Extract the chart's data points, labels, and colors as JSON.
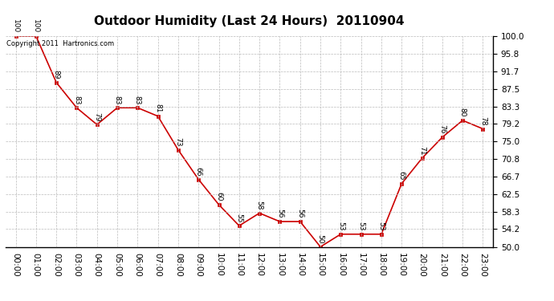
{
  "title": "Outdoor Humidity (Last 24 Hours)  20110904",
  "copyright_text": "Copyright 2011  Hartronics.com",
  "x_labels": [
    "00:00",
    "01:00",
    "02:00",
    "03:00",
    "04:00",
    "05:00",
    "06:00",
    "07:00",
    "08:00",
    "09:00",
    "10:00",
    "11:00",
    "12:00",
    "13:00",
    "14:00",
    "15:00",
    "16:00",
    "17:00",
    "18:00",
    "19:00",
    "20:00",
    "21:00",
    "22:00",
    "23:00"
  ],
  "hours": [
    0,
    1,
    2,
    3,
    4,
    5,
    6,
    7,
    8,
    9,
    10,
    11,
    12,
    13,
    14,
    15,
    16,
    17,
    18,
    19,
    20,
    21,
    22,
    23
  ],
  "values": [
    100,
    100,
    89,
    83,
    79,
    83,
    83,
    81,
    73,
    66,
    60,
    55,
    58,
    56,
    56,
    50,
    53,
    53,
    53,
    65,
    71,
    76,
    80,
    78
  ],
  "ylim": [
    50.0,
    100.0
  ],
  "yticks": [
    50.0,
    54.2,
    58.3,
    62.5,
    66.7,
    70.8,
    75.0,
    79.2,
    83.3,
    87.5,
    91.7,
    95.8,
    100.0
  ],
  "line_color": "#cc0000",
  "marker_color": "#cc0000",
  "bg_color": "#ffffff",
  "grid_color": "#bbbbbb",
  "title_fontsize": 11,
  "label_fontsize": 7.5,
  "annotation_fontsize": 6.5
}
